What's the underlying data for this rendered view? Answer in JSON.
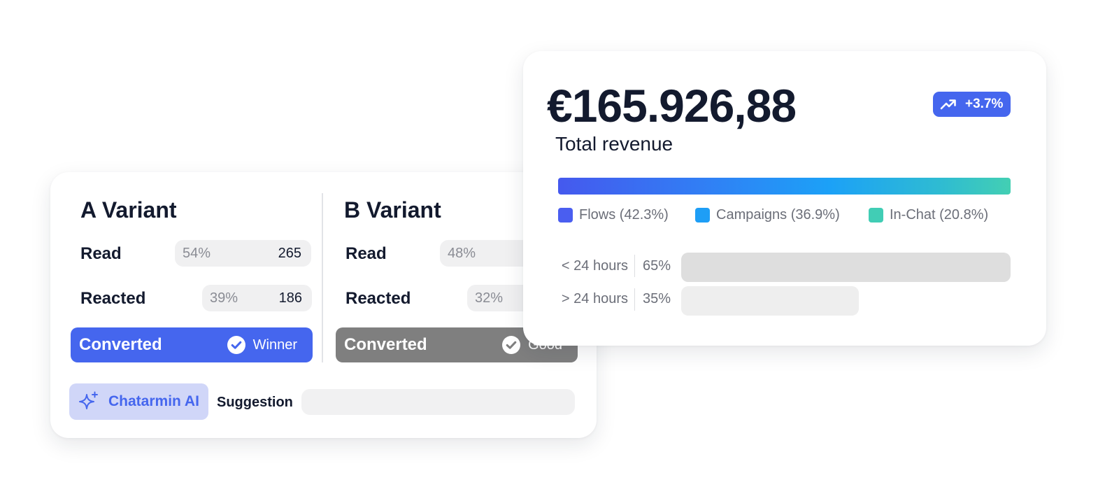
{
  "ab_test": {
    "variant_a": {
      "title": "A Variant",
      "read": {
        "label": "Read",
        "percent": "54%",
        "count": "265"
      },
      "reacted": {
        "label": "Reacted",
        "percent": "39%",
        "count": "186"
      },
      "converted": {
        "label": "Converted",
        "verdict": "Winner",
        "color": "#4566ee"
      }
    },
    "variant_b": {
      "title": "B Variant",
      "read": {
        "label": "Read",
        "percent": "48%"
      },
      "reacted": {
        "label": "Reacted",
        "percent": "32%"
      },
      "converted": {
        "label": "Converted",
        "verdict": "Good",
        "color": "#7f7f7f"
      }
    },
    "ai": {
      "label": "Chatarmin AI",
      "icon": "sparkle-icon"
    },
    "suggestion": {
      "label": "Suggestion",
      "value": ""
    }
  },
  "revenue": {
    "amount": "€165.926,88",
    "label": "Total revenue",
    "trend": {
      "value": "+3.7%",
      "icon": "trend-up-icon",
      "color": "#4566ee"
    },
    "legend": [
      {
        "label": "Flows (42.3%)",
        "color": "#4a5ef0"
      },
      {
        "label": "Campaigns (36.9%)",
        "color": "#1e9ef6"
      },
      {
        "label": "In-Chat (20.8%)",
        "color": "#41cdb5"
      }
    ],
    "time_split": [
      {
        "label": "< 24 hours",
        "percent": "65%",
        "value": 0.65
      },
      {
        "label": "> 24 hours",
        "percent": "35%",
        "value": 0.35
      }
    ]
  }
}
